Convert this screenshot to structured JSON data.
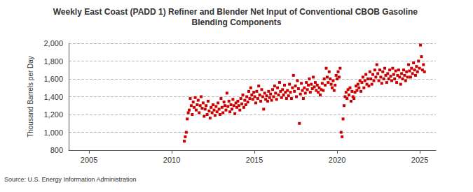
{
  "chart_data": {
    "type": "scatter",
    "title": "Weekly East Coast (PADD 1) Refiner and Blender Net Input of Conventional CBOB Gasoline Blending Components",
    "y_label": "Thousand Barrels per Day",
    "source": "Source: U.S. Energy Information Administration",
    "color": "#cc0000",
    "marker": "square",
    "grid": true,
    "xlim": [
      2003.77,
      2025.97
    ],
    "xticks": [
      2005,
      2010,
      2015,
      2020,
      2025
    ],
    "ylim": [
      800,
      2000
    ],
    "yticks": [
      800,
      {
        "value": 1000,
        "label": "1,000"
      },
      {
        "value": 1200,
        "label": "1,200"
      },
      {
        "value": 1400,
        "label": "1,400"
      },
      {
        "value": 1600,
        "label": "1,600"
      },
      {
        "value": 1800,
        "label": "1,800"
      },
      {
        "value": 2000,
        "label": "2,000"
      }
    ],
    "x": [
      2010.76,
      2010.82,
      2010.88,
      2010.94,
      2011.0,
      2011.06,
      2011.12,
      2011.18,
      2011.24,
      2011.3,
      2011.36,
      2011.42,
      2011.48,
      2011.54,
      2011.6,
      2011.66,
      2011.72,
      2011.78,
      2011.84,
      2011.9,
      2011.96,
      2012.02,
      2012.08,
      2012.14,
      2012.2,
      2012.26,
      2012.32,
      2012.38,
      2012.44,
      2012.5,
      2012.56,
      2012.62,
      2012.68,
      2012.74,
      2012.8,
      2012.86,
      2012.92,
      2012.98,
      2013.04,
      2013.1,
      2013.16,
      2013.22,
      2013.28,
      2013.34,
      2013.4,
      2013.46,
      2013.52,
      2013.58,
      2013.64,
      2013.7,
      2013.76,
      2013.82,
      2013.88,
      2013.94,
      2014.0,
      2014.06,
      2014.12,
      2014.18,
      2014.24,
      2014.3,
      2014.36,
      2014.42,
      2014.48,
      2014.54,
      2014.6,
      2014.66,
      2014.72,
      2014.78,
      2014.84,
      2014.9,
      2014.96,
      2015.02,
      2015.08,
      2015.14,
      2015.2,
      2015.26,
      2015.32,
      2015.38,
      2015.44,
      2015.5,
      2015.56,
      2015.62,
      2015.68,
      2015.74,
      2015.8,
      2015.86,
      2015.92,
      2015.98,
      2016.04,
      2016.1,
      2016.16,
      2016.22,
      2016.28,
      2016.34,
      2016.4,
      2016.46,
      2016.52,
      2016.58,
      2016.64,
      2016.7,
      2016.76,
      2016.82,
      2016.88,
      2016.94,
      2017.0,
      2017.06,
      2017.12,
      2017.18,
      2017.24,
      2017.3,
      2017.36,
      2017.42,
      2017.48,
      2017.54,
      2017.6,
      2017.66,
      2017.72,
      2017.78,
      2017.84,
      2017.9,
      2017.96,
      2018.02,
      2018.08,
      2018.14,
      2018.2,
      2018.26,
      2018.32,
      2018.38,
      2018.44,
      2018.5,
      2018.56,
      2018.62,
      2018.68,
      2018.74,
      2018.8,
      2018.86,
      2018.92,
      2018.98,
      2019.04,
      2019.1,
      2019.16,
      2019.22,
      2019.28,
      2019.34,
      2019.4,
      2019.46,
      2019.52,
      2019.58,
      2019.64,
      2019.7,
      2019.76,
      2019.82,
      2019.88,
      2019.94,
      2020.0,
      2020.06,
      2020.12,
      2020.18,
      2020.24,
      2020.3,
      2020.36,
      2020.42,
      2020.48,
      2020.54,
      2020.6,
      2020.66,
      2020.72,
      2020.78,
      2020.84,
      2020.9,
      2020.96,
      2021.02,
      2021.08,
      2021.14,
      2021.2,
      2021.26,
      2021.32,
      2021.38,
      2021.44,
      2021.5,
      2021.56,
      2021.62,
      2021.68,
      2021.74,
      2021.8,
      2021.86,
      2021.92,
      2021.98,
      2022.04,
      2022.1,
      2022.16,
      2022.22,
      2022.28,
      2022.34,
      2022.4,
      2022.46,
      2022.52,
      2022.58,
      2022.64,
      2022.7,
      2022.76,
      2022.82,
      2022.88,
      2022.94,
      2023.0,
      2023.06,
      2023.12,
      2023.18,
      2023.24,
      2023.3,
      2023.36,
      2023.42,
      2023.48,
      2023.54,
      2023.6,
      2023.66,
      2023.72,
      2023.78,
      2023.84,
      2023.9,
      2023.96,
      2024.02,
      2024.08,
      2024.14,
      2024.2,
      2024.26,
      2024.32,
      2024.38,
      2024.44,
      2024.5,
      2024.56,
      2024.62,
      2024.68,
      2024.74,
      2024.8,
      2024.86,
      2024.92,
      2024.98,
      2025.04,
      2025.1,
      2025.16,
      2025.22,
      2025.28
    ],
    "values": [
      900,
      950,
      1000,
      1150,
      1220,
      1250,
      1380,
      1300,
      1200,
      1340,
      1280,
      1390,
      1250,
      1310,
      1360,
      1220,
      1300,
      1400,
      1270,
      1330,
      1180,
      1260,
      1300,
      1200,
      1350,
      1240,
      1160,
      1280,
      1220,
      1310,
      1250,
      1190,
      1290,
      1230,
      1330,
      1260,
      1200,
      1380,
      1280,
      1220,
      1340,
      1300,
      1250,
      1440,
      1290,
      1350,
      1230,
      1310,
      1260,
      1370,
      1300,
      1210,
      1330,
      1280,
      1350,
      1300,
      1250,
      1380,
      1320,
      1420,
      1280,
      1360,
      1310,
      1400,
      1340,
      1460,
      1380,
      1500,
      1420,
      1370,
      1450,
      1400,
      1330,
      1460,
      1380,
      1520,
      1420,
      1350,
      1480,
      1400,
      1260,
      1440,
      1370,
      1410,
      1350,
      1460,
      1390,
      1430,
      1360,
      1480,
      1400,
      1520,
      1440,
      1370,
      1500,
      1420,
      1560,
      1460,
      1390,
      1480,
      1420,
      1530,
      1450,
      1380,
      1470,
      1410,
      1540,
      1450,
      1380,
      1500,
      1640,
      1460,
      1520,
      1400,
      1580,
      1490,
      1100,
      1430,
      1550,
      1470,
      1380,
      1500,
      1440,
      1560,
      1480,
      1530,
      1600,
      1450,
      1540,
      1490,
      1620,
      1510,
      1560,
      1470,
      1530,
      1450,
      1500,
      1420,
      1480,
      1550,
      1470,
      1600,
      1530,
      1720,
      1620,
      1560,
      1680,
      1600,
      1540,
      1500,
      1580,
      1470,
      1530,
      1640,
      1600,
      1680,
      1620,
      1720,
      1000,
      950,
      1150,
      1300,
      1400,
      1450,
      1380,
      1480,
      1420,
      1500,
      1350,
      1460,
      1400,
      1380,
      1450,
      1520,
      1470,
      1540,
      1500,
      1580,
      1460,
      1560,
      1620,
      1500,
      1580,
      1650,
      1540,
      1600,
      1520,
      1680,
      1600,
      1540,
      1650,
      1580,
      1700,
      1620,
      1760,
      1660,
      1580,
      1700,
      1620,
      1550,
      1680,
      1600,
      1720,
      1640,
      1560,
      1660,
      1600,
      1700,
      1630,
      1580,
      1720,
      1650,
      1600,
      1690,
      1560,
      1640,
      1700,
      1620,
      1540,
      1660,
      1600,
      1700,
      1640,
      1580,
      1680,
      1620,
      1760,
      1690,
      1620,
      1720,
      1660,
      1780,
      1700,
      1640,
      1740,
      1680,
      1800,
      1720,
      1980,
      1850,
      1700,
      1760,
      1680
    ]
  }
}
